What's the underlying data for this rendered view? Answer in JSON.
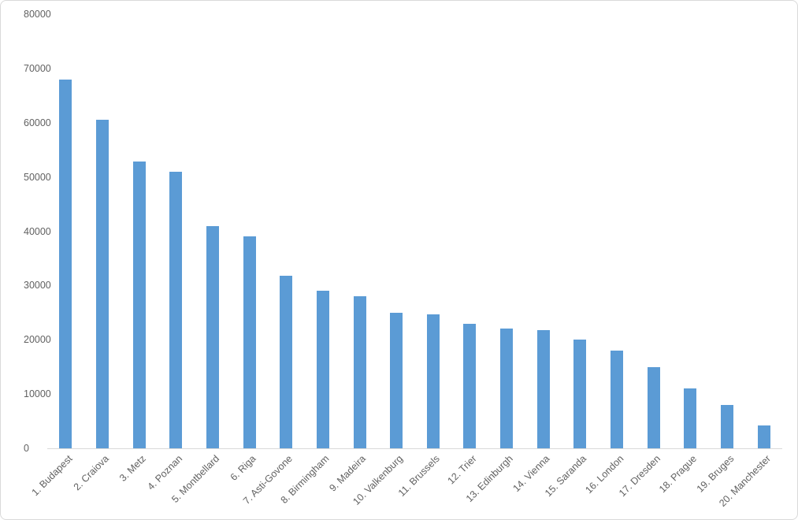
{
  "chart": {
    "bar_color": "#5B9BD5",
    "axis_line_color": "#D9D9D9",
    "frame_border_color": "#D9D9D9",
    "label_color": "#616161",
    "background_color": "#FFFFFF"
  },
  "chart_data": {
    "type": "bar",
    "title": "",
    "xlabel": "",
    "ylabel": "",
    "categories": [
      "1. Budapest",
      "2. Craiova",
      "3. Metz",
      "4. Poznan",
      "5. Montbellard",
      "6. Riga",
      "7. Asti-Govone",
      "8. Birmingham",
      "9. Madeira",
      "10. Valkenburg",
      "11. Brussels",
      "12. Trier",
      "13. Edinburgh",
      "14. Vienna",
      "15. Saranda",
      "16. London",
      "17. Dresden",
      "18. Prague",
      "19. Bruges",
      "20. Manchester"
    ],
    "values": [
      68000,
      60500,
      52800,
      51000,
      41000,
      39000,
      31800,
      29000,
      28000,
      25000,
      24700,
      23000,
      22000,
      21800,
      20000,
      18000,
      15000,
      11000,
      8000,
      4200
    ],
    "ylim": [
      0,
      80000
    ],
    "ytick_step": 10000,
    "yticks": [
      80000,
      70000,
      60000,
      50000,
      40000,
      30000,
      20000,
      10000,
      0
    ],
    "ytick_labels": [
      "80000",
      "70000",
      "60000",
      "50000",
      "40000",
      "30000",
      "20000",
      "10000",
      "0"
    ],
    "grid": false,
    "legend": false,
    "x_label_rotation_deg": 45
  }
}
